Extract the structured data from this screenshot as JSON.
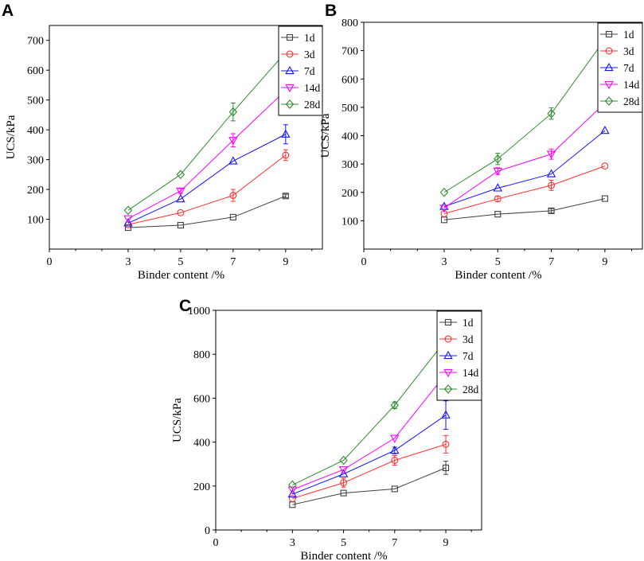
{
  "figure": {
    "panel_letters": [
      "A",
      "B",
      "C"
    ]
  },
  "chart_data": [
    {
      "panel": "A",
      "type": "line",
      "xlabel": "Binder content /%",
      "ylabel": "UCS/kPa",
      "xlim": [
        0,
        10.4
      ],
      "ylim": [
        0,
        750
      ],
      "x_ticks": [
        0,
        3,
        5,
        7,
        9
      ],
      "y_ticks": [
        100,
        200,
        300,
        400,
        500,
        600,
        700
      ],
      "x": [
        3,
        5,
        7,
        9
      ],
      "series": [
        {
          "name": "1d",
          "color": "#404040",
          "marker": "square",
          "values": [
            72,
            80,
            107,
            178
          ],
          "errors": [
            0,
            0,
            0,
            6
          ]
        },
        {
          "name": "3d",
          "color": "#ff3030",
          "marker": "circle",
          "values": [
            82,
            122,
            180,
            315
          ],
          "errors": [
            0,
            0,
            20,
            18
          ]
        },
        {
          "name": "7d",
          "color": "#1414ff",
          "marker": "triangle-up",
          "values": [
            87,
            168,
            295,
            385
          ],
          "errors": [
            0,
            0,
            0,
            32
          ]
        },
        {
          "name": "14d",
          "color": "#ff00ff",
          "marker": "triangle-down",
          "values": [
            102,
            195,
            365,
            532
          ],
          "errors": [
            0,
            8,
            22,
            18
          ]
        },
        {
          "name": "28d",
          "color": "#2e8b2e",
          "marker": "diamond",
          "values": [
            130,
            250,
            460,
            660
          ],
          "errors": [
            0,
            0,
            30,
            45
          ]
        }
      ]
    },
    {
      "panel": "B",
      "type": "line",
      "xlabel": "Binder content /%",
      "ylabel": "UCS/kPa",
      "xlim": [
        0,
        10.4
      ],
      "ylim": [
        0,
        800
      ],
      "x_ticks": [
        0,
        3,
        5,
        7,
        9
      ],
      "y_ticks": [
        100,
        200,
        300,
        400,
        500,
        600,
        700,
        800
      ],
      "x": [
        3,
        5,
        7,
        9
      ],
      "series": [
        {
          "name": "1d",
          "color": "#404040",
          "marker": "square",
          "values": [
            103,
            123,
            135,
            178
          ],
          "errors": [
            0,
            0,
            8,
            0
          ]
        },
        {
          "name": "3d",
          "color": "#ff3030",
          "marker": "circle",
          "values": [
            125,
            177,
            225,
            293
          ],
          "errors": [
            0,
            10,
            18,
            0
          ]
        },
        {
          "name": "7d",
          "color": "#1414ff",
          "marker": "triangle-up",
          "values": [
            150,
            215,
            265,
            418
          ],
          "errors": [
            0,
            0,
            0,
            0
          ]
        },
        {
          "name": "14d",
          "color": "#ff00ff",
          "marker": "triangle-down",
          "values": [
            145,
            275,
            335,
            515
          ],
          "errors": [
            0,
            12,
            18,
            20
          ]
        },
        {
          "name": "28d",
          "color": "#2e8b2e",
          "marker": "diamond",
          "values": [
            200,
            318,
            478,
            740
          ],
          "errors": [
            0,
            20,
            20,
            0
          ]
        }
      ]
    },
    {
      "panel": "C",
      "type": "line",
      "xlabel": "Binder content /%",
      "ylabel": "UCS/kPa",
      "xlim": [
        0,
        10.4
      ],
      "ylim": [
        0,
        1000
      ],
      "x_ticks": [
        0,
        3,
        5,
        7,
        9
      ],
      "y_ticks": [
        0,
        200,
        400,
        600,
        800,
        1000
      ],
      "x": [
        3,
        5,
        7,
        9
      ],
      "series": [
        {
          "name": "1d",
          "color": "#404040",
          "marker": "square",
          "values": [
            115,
            168,
            187,
            283
          ],
          "errors": [
            0,
            0,
            0,
            30
          ]
        },
        {
          "name": "3d",
          "color": "#ff3030",
          "marker": "circle",
          "values": [
            143,
            215,
            317,
            390
          ],
          "errors": [
            0,
            20,
            22,
            40
          ]
        },
        {
          "name": "7d",
          "color": "#1414ff",
          "marker": "triangle-up",
          "values": [
            163,
            255,
            362,
            523
          ],
          "errors": [
            0,
            0,
            15,
            65
          ]
        },
        {
          "name": "14d",
          "color": "#ff00ff",
          "marker": "triangle-down",
          "values": [
            183,
            275,
            418,
            710
          ],
          "errors": [
            0,
            0,
            0,
            0
          ]
        },
        {
          "name": "28d",
          "color": "#2e8b2e",
          "marker": "diamond",
          "values": [
            205,
            317,
            568,
            865
          ],
          "errors": [
            0,
            0,
            15,
            55
          ]
        }
      ]
    }
  ]
}
